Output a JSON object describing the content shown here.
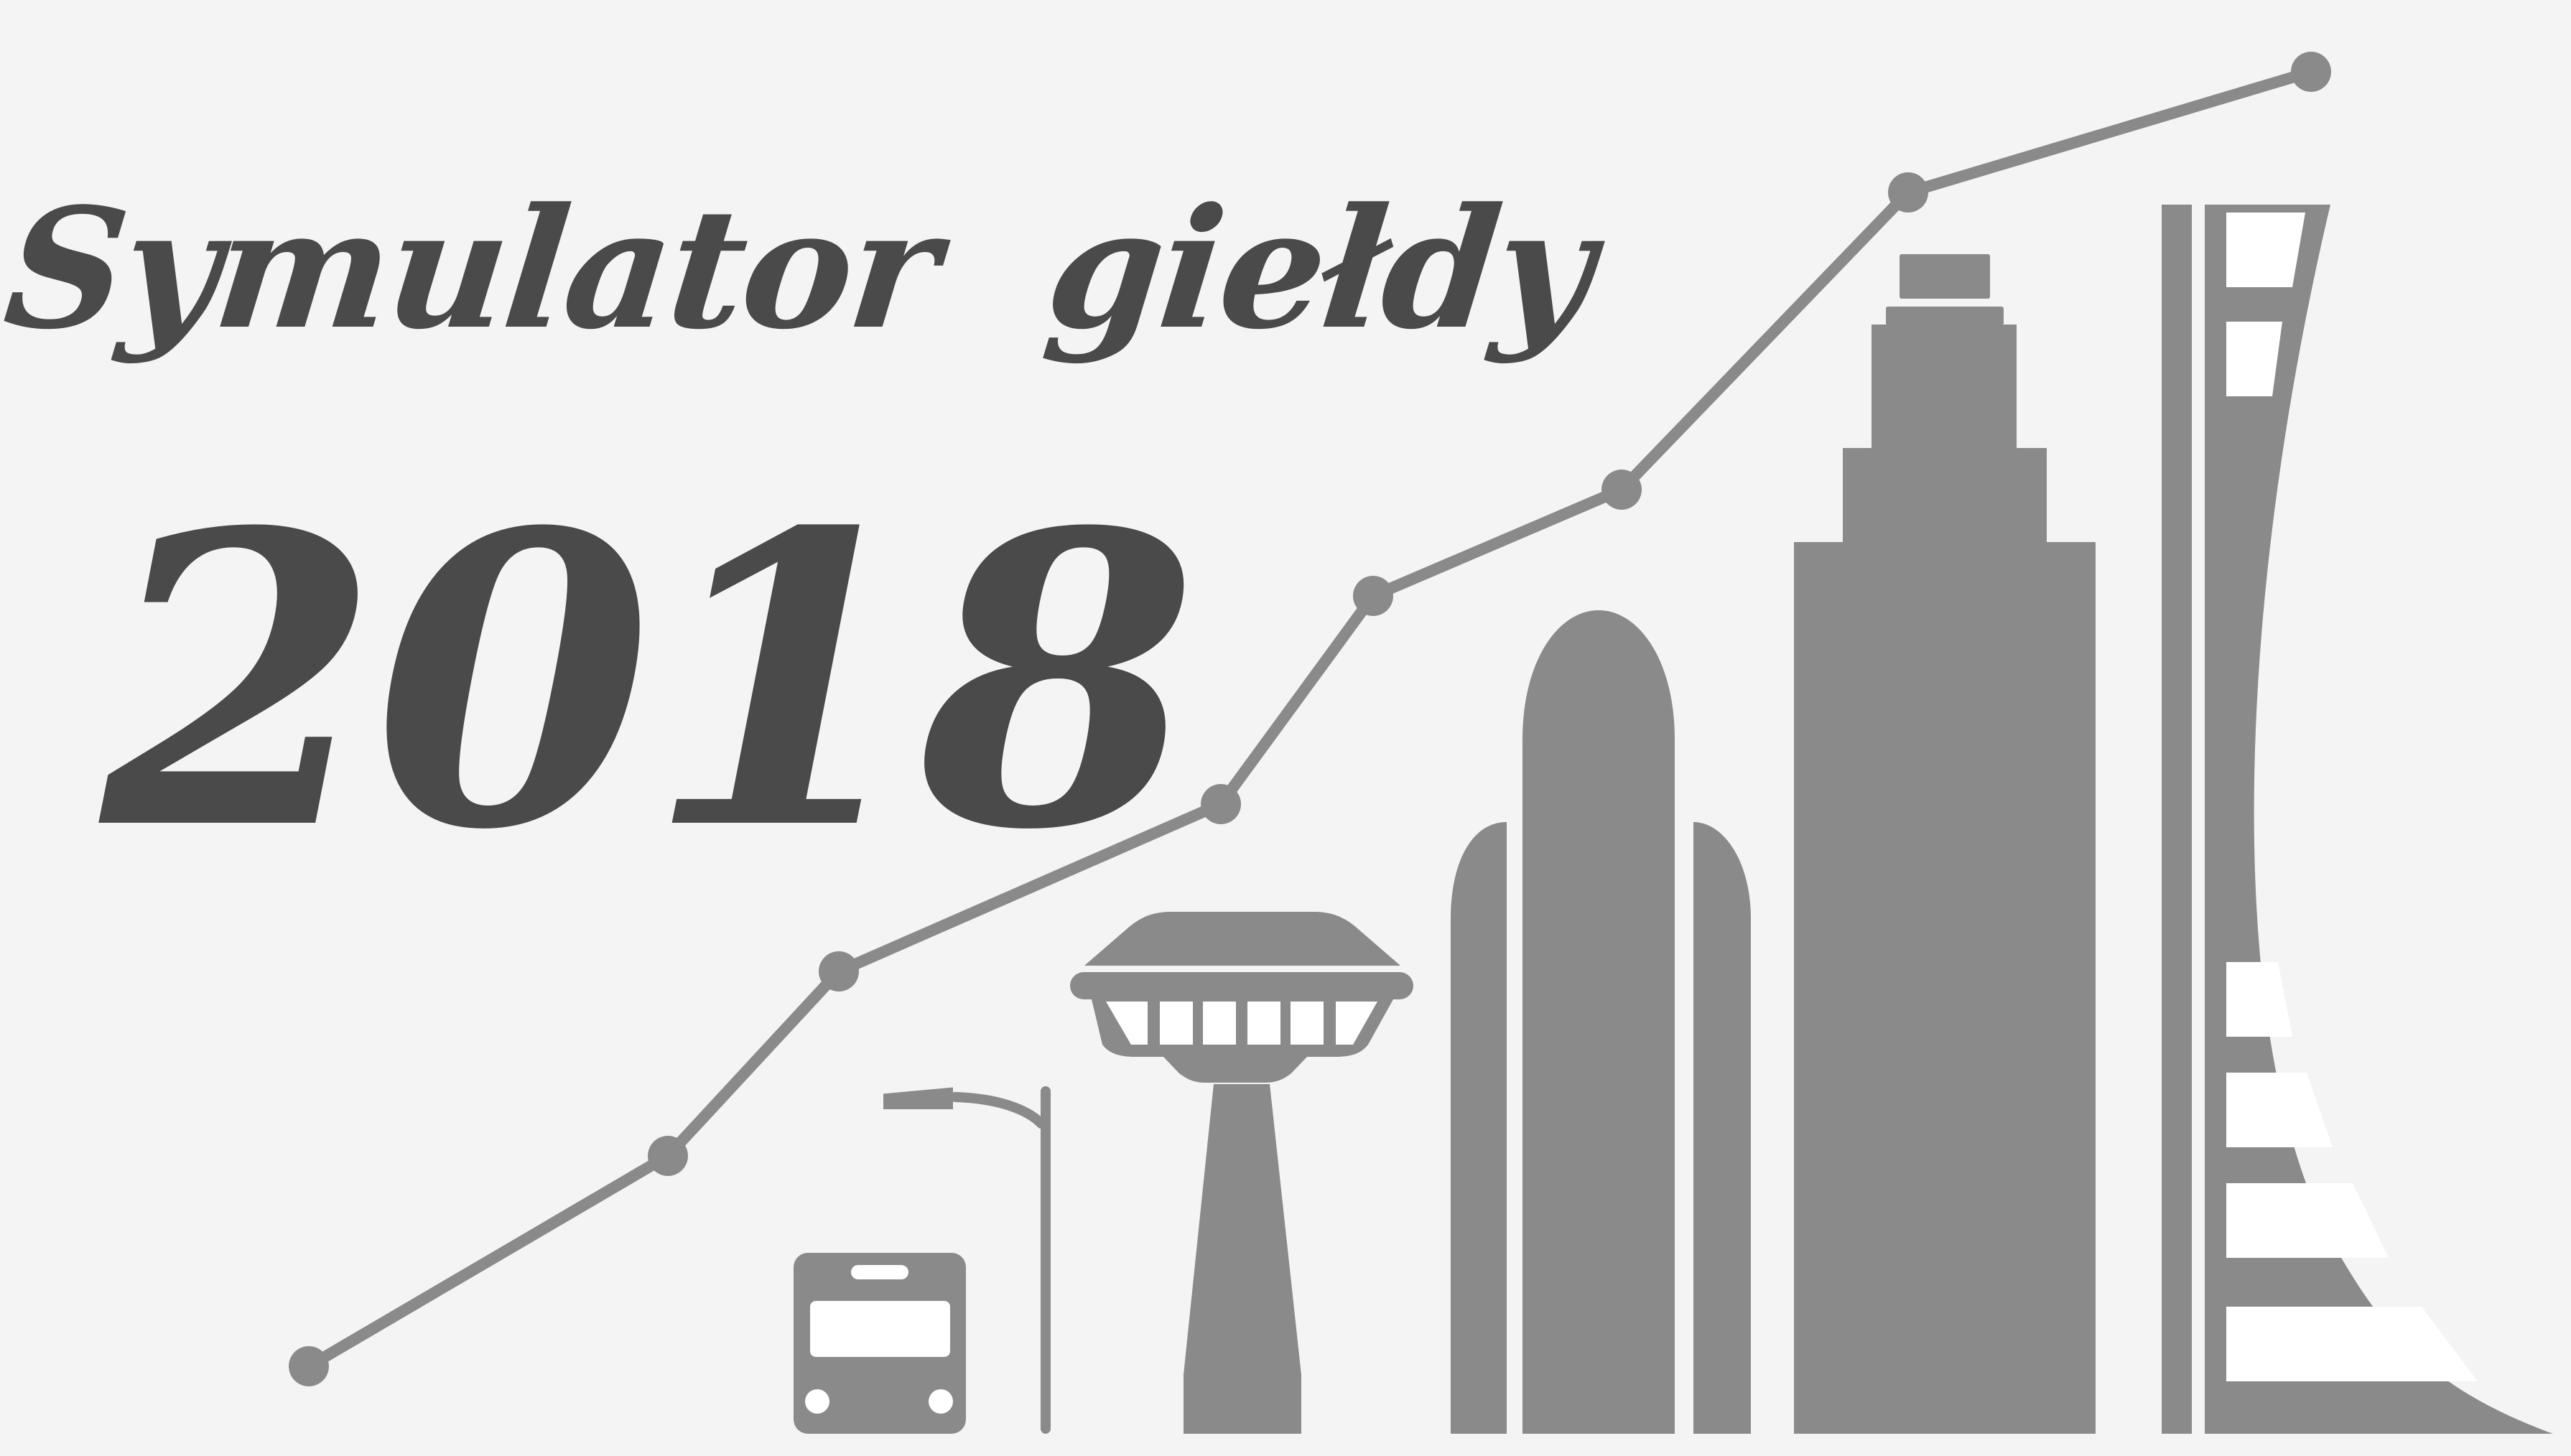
{
  "title": {
    "line1": "Symulator",
    "line2": "giełdy",
    "year": "2018"
  },
  "colors": {
    "background": "#f4f4f4",
    "text": "#4a4a4a",
    "graphic": "#8a8a8a",
    "highlight": "#ffffff"
  },
  "icons": [
    "rising-line-graph-icon",
    "bus-icon",
    "street-lamp-icon",
    "tower-icon",
    "rocket-building-icon",
    "skyscraper-icon",
    "curved-tower-icon"
  ]
}
